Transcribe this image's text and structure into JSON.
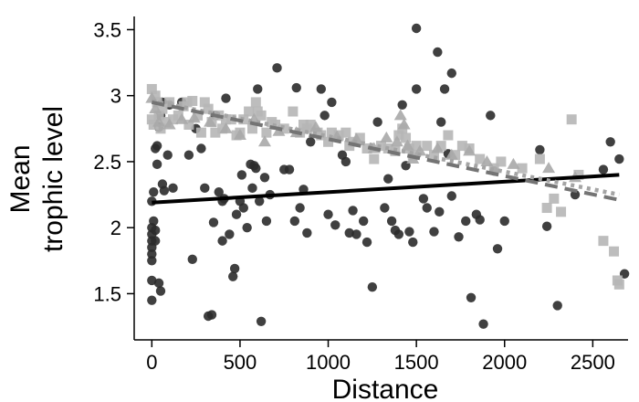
{
  "chart_data": {
    "type": "scatter",
    "title": "",
    "xlabel": "Distance",
    "ylabel_lines": [
      "Mean",
      "trophic level"
    ],
    "xlim": [
      -100,
      2700
    ],
    "ylim": [
      1.15,
      3.6
    ],
    "xticks": [
      0,
      500,
      1000,
      1500,
      2000,
      2500
    ],
    "yticks": [
      1.5,
      2,
      2.5,
      3,
      3.5
    ],
    "ytick_labels": [
      "1.5",
      "2",
      "2.5",
      "3",
      "3.5"
    ],
    "grid": false,
    "legend": "none",
    "series": [
      {
        "marker": "circle",
        "color": "#2b2b2b",
        "points": [
          [
            0,
            1.45
          ],
          [
            0,
            1.6
          ],
          [
            0,
            1.75
          ],
          [
            0,
            1.8
          ],
          [
            0,
            1.85
          ],
          [
            0,
            1.9
          ],
          [
            0,
            1.95
          ],
          [
            0,
            2.0
          ],
          [
            10,
            2.05
          ],
          [
            20,
            1.9
          ],
          [
            0,
            2.2
          ],
          [
            10,
            2.27
          ],
          [
            30,
            2.48
          ],
          [
            20,
            2.6
          ],
          [
            30,
            2.62
          ],
          [
            40,
            2.76
          ],
          [
            50,
            2.85
          ],
          [
            60,
            2.95
          ],
          [
            40,
            1.58
          ],
          [
            50,
            1.52
          ],
          [
            20,
            1.98
          ],
          [
            90,
            2.55
          ],
          [
            60,
            2.33
          ],
          [
            70,
            2.28
          ],
          [
            100,
            2.93
          ],
          [
            120,
            2.3
          ],
          [
            170,
            2.95
          ],
          [
            210,
            2.55
          ],
          [
            230,
            1.76
          ],
          [
            250,
            2.75
          ],
          [
            280,
            2.6
          ],
          [
            300,
            2.3
          ],
          [
            320,
            1.33
          ],
          [
            340,
            1.34
          ],
          [
            350,
            2.04
          ],
          [
            360,
            2.85
          ],
          [
            380,
            2.27
          ],
          [
            400,
            1.9
          ],
          [
            400,
            2.2
          ],
          [
            410,
            2.22
          ],
          [
            420,
            2.98
          ],
          [
            440,
            1.95
          ],
          [
            460,
            1.63
          ],
          [
            470,
            1.69
          ],
          [
            480,
            2.1
          ],
          [
            500,
            2.2
          ],
          [
            510,
            2.4
          ],
          [
            520,
            2.15
          ],
          [
            540,
            2.0
          ],
          [
            560,
            2.48
          ],
          [
            570,
            2.3
          ],
          [
            580,
            2.47
          ],
          [
            590,
            2.45
          ],
          [
            600,
            3.05
          ],
          [
            610,
            2.2
          ],
          [
            620,
            1.29
          ],
          [
            640,
            2.38
          ],
          [
            650,
            2.05
          ],
          [
            670,
            2.25
          ],
          [
            710,
            3.21
          ],
          [
            750,
            2.44
          ],
          [
            780,
            2.44
          ],
          [
            810,
            2.05
          ],
          [
            820,
            3.06
          ],
          [
            840,
            2.15
          ],
          [
            860,
            2.29
          ],
          [
            880,
            1.96
          ],
          [
            900,
            2.65
          ],
          [
            960,
            3.05
          ],
          [
            980,
            2.85
          ],
          [
            1000,
            2.1
          ],
          [
            1020,
            2.95
          ],
          [
            1040,
            2.02
          ],
          [
            1080,
            2.55
          ],
          [
            1100,
            2.5
          ],
          [
            1120,
            1.96
          ],
          [
            1140,
            2.13
          ],
          [
            1160,
            1.95
          ],
          [
            1200,
            2.05
          ],
          [
            1220,
            1.89
          ],
          [
            1250,
            1.55
          ],
          [
            1280,
            2.8
          ],
          [
            1320,
            2.15
          ],
          [
            1340,
            2.37
          ],
          [
            1360,
            2.05
          ],
          [
            1380,
            1.98
          ],
          [
            1400,
            1.95
          ],
          [
            1420,
            2.93
          ],
          [
            1440,
            2.47
          ],
          [
            1460,
            1.97
          ],
          [
            1480,
            1.89
          ],
          [
            1500,
            3.51
          ],
          [
            1500,
            3.05
          ],
          [
            1540,
            2.22
          ],
          [
            1560,
            2.15
          ],
          [
            1600,
            1.97
          ],
          [
            1620,
            3.33
          ],
          [
            1630,
            2.12
          ],
          [
            1640,
            2.8
          ],
          [
            1660,
            3.05
          ],
          [
            1680,
            2.56
          ],
          [
            1700,
            3.17
          ],
          [
            1700,
            2.24
          ],
          [
            1740,
            1.93
          ],
          [
            1780,
            2.05
          ],
          [
            1810,
            1.47
          ],
          [
            1840,
            2.1
          ],
          [
            1860,
            2.06
          ],
          [
            1880,
            1.27
          ],
          [
            1920,
            2.85
          ],
          [
            1940,
            2.43
          ],
          [
            1960,
            1.84
          ],
          [
            2000,
            2.05
          ],
          [
            2200,
            2.59
          ],
          [
            2240,
            2.01
          ],
          [
            2300,
            1.41
          ],
          [
            2400,
            2.25
          ],
          [
            2560,
            2.44
          ],
          [
            2600,
            2.65
          ],
          [
            2650,
            2.52
          ],
          [
            2680,
            1.65
          ]
        ],
        "fit": {
          "style": "solid",
          "color": "#000000",
          "x": [
            0,
            2650
          ],
          "y": [
            2.19,
            2.4
          ]
        }
      },
      {
        "marker": "square",
        "color": "#b6b6b6",
        "points": [
          [
            0,
            3.05
          ],
          [
            0,
            2.82
          ],
          [
            10,
            2.78
          ],
          [
            20,
            3.0
          ],
          [
            30,
            2.95
          ],
          [
            40,
            2.85
          ],
          [
            50,
            2.75
          ],
          [
            60,
            2.9
          ],
          [
            80,
            2.8
          ],
          [
            100,
            2.95
          ],
          [
            120,
            2.82
          ],
          [
            150,
            2.85
          ],
          [
            180,
            2.92
          ],
          [
            200,
            2.95
          ],
          [
            210,
            2.78
          ],
          [
            230,
            2.96
          ],
          [
            260,
            2.85
          ],
          [
            280,
            2.72
          ],
          [
            300,
            2.95
          ],
          [
            320,
            2.9
          ],
          [
            340,
            2.8
          ],
          [
            360,
            2.72
          ],
          [
            380,
            2.85
          ],
          [
            400,
            2.75
          ],
          [
            420,
            2.82
          ],
          [
            450,
            2.82
          ],
          [
            480,
            2.7
          ],
          [
            500,
            2.72
          ],
          [
            520,
            2.82
          ],
          [
            550,
            2.88
          ],
          [
            570,
            2.75
          ],
          [
            590,
            2.95
          ],
          [
            600,
            2.88
          ],
          [
            620,
            2.85
          ],
          [
            650,
            2.72
          ],
          [
            680,
            2.8
          ],
          [
            700,
            2.78
          ],
          [
            750,
            2.75
          ],
          [
            800,
            2.88
          ],
          [
            840,
            2.72
          ],
          [
            860,
            2.78
          ],
          [
            880,
            2.75
          ],
          [
            900,
            2.78
          ],
          [
            940,
            2.72
          ],
          [
            960,
            2.7
          ],
          [
            1000,
            2.65
          ],
          [
            1020,
            2.72
          ],
          [
            1060,
            2.7
          ],
          [
            1100,
            2.72
          ],
          [
            1120,
            2.62
          ],
          [
            1140,
            2.65
          ],
          [
            1180,
            2.68
          ],
          [
            1220,
            2.6
          ],
          [
            1260,
            2.52
          ],
          [
            1300,
            2.62
          ],
          [
            1340,
            2.6
          ],
          [
            1380,
            2.58
          ],
          [
            1400,
            2.7
          ],
          [
            1420,
            2.75
          ],
          [
            1440,
            2.68
          ],
          [
            1460,
            2.6
          ],
          [
            1480,
            2.55
          ],
          [
            1500,
            2.62
          ],
          [
            1560,
            2.62
          ],
          [
            1600,
            2.55
          ],
          [
            1640,
            2.62
          ],
          [
            1680,
            2.7
          ],
          [
            1720,
            2.55
          ],
          [
            1760,
            2.62
          ],
          [
            1800,
            2.6
          ],
          [
            1860,
            2.52
          ],
          [
            1940,
            2.45
          ],
          [
            1980,
            2.5
          ],
          [
            2100,
            2.45
          ],
          [
            2200,
            2.52
          ],
          [
            2240,
            2.15
          ],
          [
            2280,
            2.22
          ],
          [
            2320,
            2.12
          ],
          [
            2380,
            2.82
          ],
          [
            2420,
            2.4
          ],
          [
            2560,
            1.9
          ],
          [
            2620,
            1.82
          ],
          [
            2640,
            1.6
          ],
          [
            2650,
            1.57
          ]
        ],
        "fit": {
          "style": "dotted",
          "color": "#a4a4a4",
          "x": [
            0,
            2650
          ],
          "y": [
            2.96,
            2.25
          ]
        }
      },
      {
        "marker": "triangle",
        "color": "#a8a8a8",
        "points": [
          [
            0,
            2.98
          ],
          [
            20,
            2.9
          ],
          [
            40,
            2.8
          ],
          [
            100,
            2.78
          ],
          [
            170,
            2.82
          ],
          [
            240,
            2.83
          ],
          [
            330,
            2.8
          ],
          [
            420,
            2.75
          ],
          [
            500,
            2.7
          ],
          [
            580,
            2.82
          ],
          [
            640,
            2.65
          ],
          [
            720,
            2.73
          ],
          [
            820,
            2.72
          ],
          [
            930,
            2.76
          ],
          [
            1050,
            2.69
          ],
          [
            1160,
            2.67
          ],
          [
            1260,
            2.6
          ],
          [
            1330,
            2.68
          ],
          [
            1390,
            2.65
          ],
          [
            1410,
            2.85
          ],
          [
            1430,
            2.78
          ],
          [
            1450,
            2.62
          ],
          [
            1480,
            2.52
          ],
          [
            1520,
            2.58
          ],
          [
            1620,
            2.6
          ],
          [
            1700,
            2.55
          ],
          [
            1800,
            2.58
          ],
          [
            1900,
            2.5
          ],
          [
            2050,
            2.48
          ],
          [
            2250,
            2.45
          ],
          [
            2400,
            2.38
          ]
        ],
        "fit": {
          "style": "dashed",
          "color": "#747474",
          "x": [
            0,
            2650
          ],
          "y": [
            2.95,
            2.21
          ]
        }
      }
    ]
  }
}
